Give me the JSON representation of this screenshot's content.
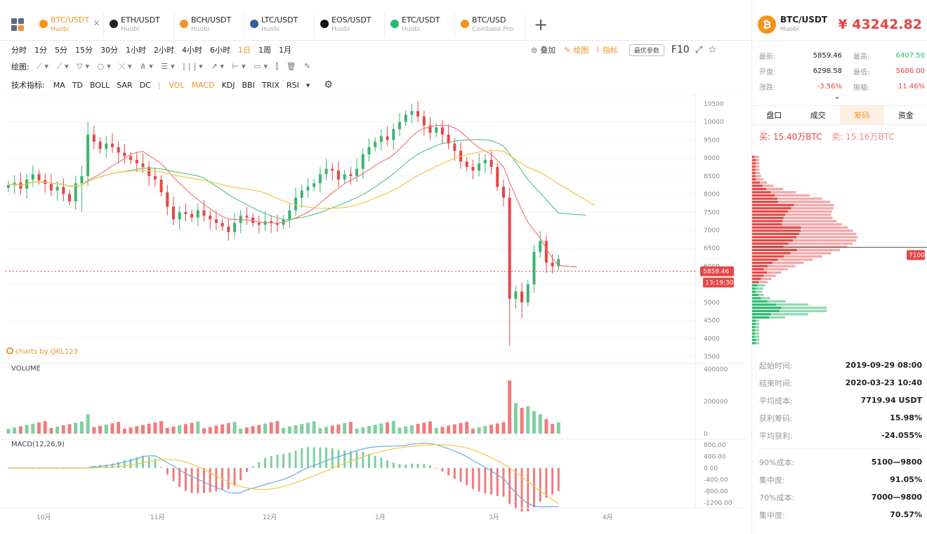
{
  "tabs": [
    {
      "pair": "BTC/USDT",
      "exchange": "Huobi",
      "color": "#f7931a",
      "active": true
    },
    {
      "pair": "ETH/USDT",
      "exchange": "Huobi",
      "color": "#222222",
      "active": false
    },
    {
      "pair": "BCH/USDT",
      "exchange": "Huobi",
      "color": "#f0932b",
      "active": false
    },
    {
      "pair": "LTC/USDT",
      "exchange": "Huobi",
      "color": "#345d9d",
      "active": false
    },
    {
      "pair": "EOS/USDT",
      "exchange": "Huobi",
      "color": "#111111",
      "active": false
    },
    {
      "pair": "ETC/USDT",
      "exchange": "Huobi",
      "color": "#2eb872",
      "active": false
    },
    {
      "pair": "BTC/USD",
      "exchange": "Coinbase Pro",
      "color": "#f7931a",
      "active": false
    }
  ],
  "timeframes": [
    "分时",
    "1分",
    "5分",
    "15分",
    "30分",
    "1小时",
    "2小时",
    "4小时",
    "6小时",
    "1日",
    "1周",
    "1月"
  ],
  "selected_timeframe": "1日",
  "tools": {
    "overlay": "叠加",
    "draw": "绘图",
    "indicator": "指标",
    "optimize": "最优参数",
    "f10": "F10"
  },
  "draw_label": "绘图:",
  "indicators_label": "技术指标:",
  "indicators": [
    "MA",
    "TD",
    "BOLL",
    "SAR",
    "DC",
    "VOL",
    "MACD",
    "KDJ",
    "BBI",
    "TRIX",
    "RSI"
  ],
  "selected_indicators": [
    "VOL",
    "MACD"
  ],
  "chart": {
    "watermark": "charts by QKL123",
    "volume_label": "VOLUME",
    "macd_label": "MACD(12,26,9)",
    "current_price": "5859.46",
    "current_time": "13:19:30",
    "depth_marker": "7100"
  },
  "chart_data": {
    "type": "candlestick",
    "price_axis": [
      10500,
      10000,
      9500,
      9000,
      8500,
      8000,
      7500,
      7000,
      6500,
      6000,
      5500,
      5000,
      4500,
      4000,
      3500
    ],
    "volume_axis": [
      "400000",
      "200000",
      "0"
    ],
    "macd_axis": [
      "800.00",
      "400.00",
      "0.00",
      "-400.00",
      "-800.00",
      "-1200.00"
    ],
    "x_labels": [
      "10月",
      "11月",
      "12月",
      "1月",
      "3月",
      "4月"
    ],
    "ylim": [
      3500,
      10500
    ],
    "close_series": [
      8250,
      8320,
      8150,
      8400,
      8550,
      8380,
      8280,
      8100,
      8200,
      8000,
      7800,
      8300,
      8500,
      9650,
      9450,
      9250,
      9400,
      9300,
      9150,
      9050,
      8950,
      8850,
      8750,
      8500,
      8400,
      8050,
      7650,
      7300,
      7500,
      7450,
      7350,
      7550,
      7400,
      7300,
      7200,
      7100,
      6950,
      7200,
      7400,
      7350,
      7200,
      7150,
      7250,
      7200,
      7150,
      7300,
      7550,
      7900,
      8100,
      8200,
      8300,
      8550,
      8700,
      8650,
      8400,
      8550,
      8500,
      8700,
      9100,
      9300,
      9450,
      9600,
      9500,
      9800,
      10000,
      10200,
      10300,
      10150,
      9900,
      9700,
      9850,
      9650,
      9400,
      9200,
      8900,
      8750,
      8650,
      8850,
      8950,
      8750,
      8200,
      7900,
      5100,
      5300,
      5000,
      5500,
      6400,
      6700,
      6100,
      6000,
      6200
    ],
    "ma_yellow": "orange 30-day moving average",
    "ma_green": "green 20-day moving average",
    "ma_red": "red 10-day moving average"
  },
  "right_panel": {
    "pair": "BTC/USDT",
    "exchange": "Huobi",
    "price": "¥ 43242.82",
    "stats": [
      {
        "l1": "最新:",
        "v1": "5859.46",
        "c1": "",
        "l2": "最高:",
        "v2": "6407.56",
        "c2": "green"
      },
      {
        "l1": "开盘:",
        "v1": "6298.58",
        "c1": "",
        "l2": "最低:",
        "v2": "5686.00",
        "c2": "red"
      },
      {
        "l1": "涨跌:",
        "v1": "-3.56%",
        "c1": "red",
        "l2": "振幅:",
        "v2": "11.46%",
        "c2": "red"
      }
    ],
    "tabs": [
      "盘口",
      "成交",
      "筹码",
      "资金"
    ],
    "selected_tab": "筹码",
    "buy_label": "买:",
    "buy_value": "15.40万BTC",
    "sell_label": "卖:",
    "sell_value": "15.16万BTC",
    "info1": [
      {
        "label": "起始时间:",
        "value": "2019-09-29 08:00",
        "color": ""
      },
      {
        "label": "结束时间:",
        "value": "2020-03-23 10:40",
        "color": ""
      },
      {
        "label": "平均成本:",
        "value": "7719.94 USDT",
        "color": "red"
      },
      {
        "label": "获利筹码:",
        "value": "15.98%",
        "color": ""
      },
      {
        "label": "平均获利:",
        "value": "-24.055%",
        "color": "red"
      }
    ],
    "info2": [
      {
        "label": "90%成本:",
        "value": "5100—9800",
        "color": ""
      },
      {
        "label": "集中度:",
        "value": "91.05%",
        "color": ""
      },
      {
        "label": "70%成本:",
        "value": "7000—9800",
        "color": ""
      },
      {
        "label": "集中度:",
        "value": "70.57%",
        "color": ""
      }
    ]
  }
}
